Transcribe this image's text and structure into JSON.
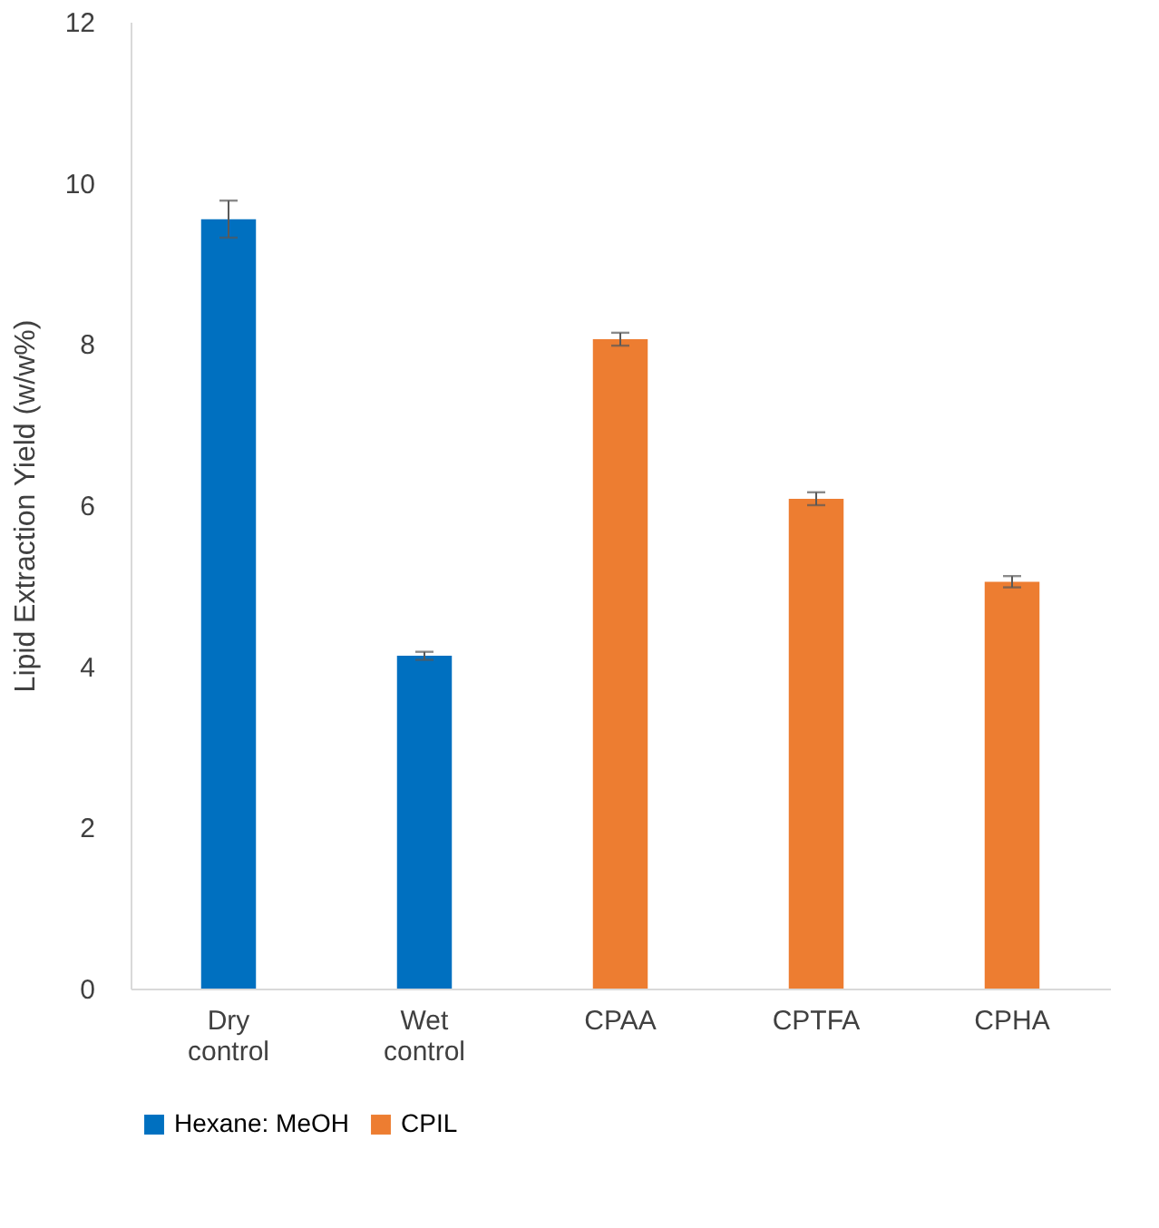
{
  "chart_data": {
    "type": "bar",
    "ylabel": "Lipid Extraction Yield (w/w%)",
    "categories": [
      "Dry control",
      "Wet control",
      "CPAA",
      "CPTFA",
      "CPHA"
    ],
    "series": [
      {
        "name": "Hexane: MeOH",
        "color": "#0070c0",
        "values": [
          9.55,
          4.13,
          null,
          null,
          null
        ],
        "errors": [
          0.23,
          0.05,
          null,
          null,
          null
        ]
      },
      {
        "name": "CPIL",
        "color": "#ed7d31",
        "values": [
          null,
          null,
          8.06,
          6.08,
          5.05
        ],
        "errors": [
          null,
          null,
          0.08,
          0.08,
          0.07
        ]
      }
    ],
    "ylim": [
      0,
      12
    ],
    "yticks": [
      0,
      2,
      4,
      6,
      8,
      10,
      12
    ],
    "grid": false,
    "legend": "bottom"
  }
}
